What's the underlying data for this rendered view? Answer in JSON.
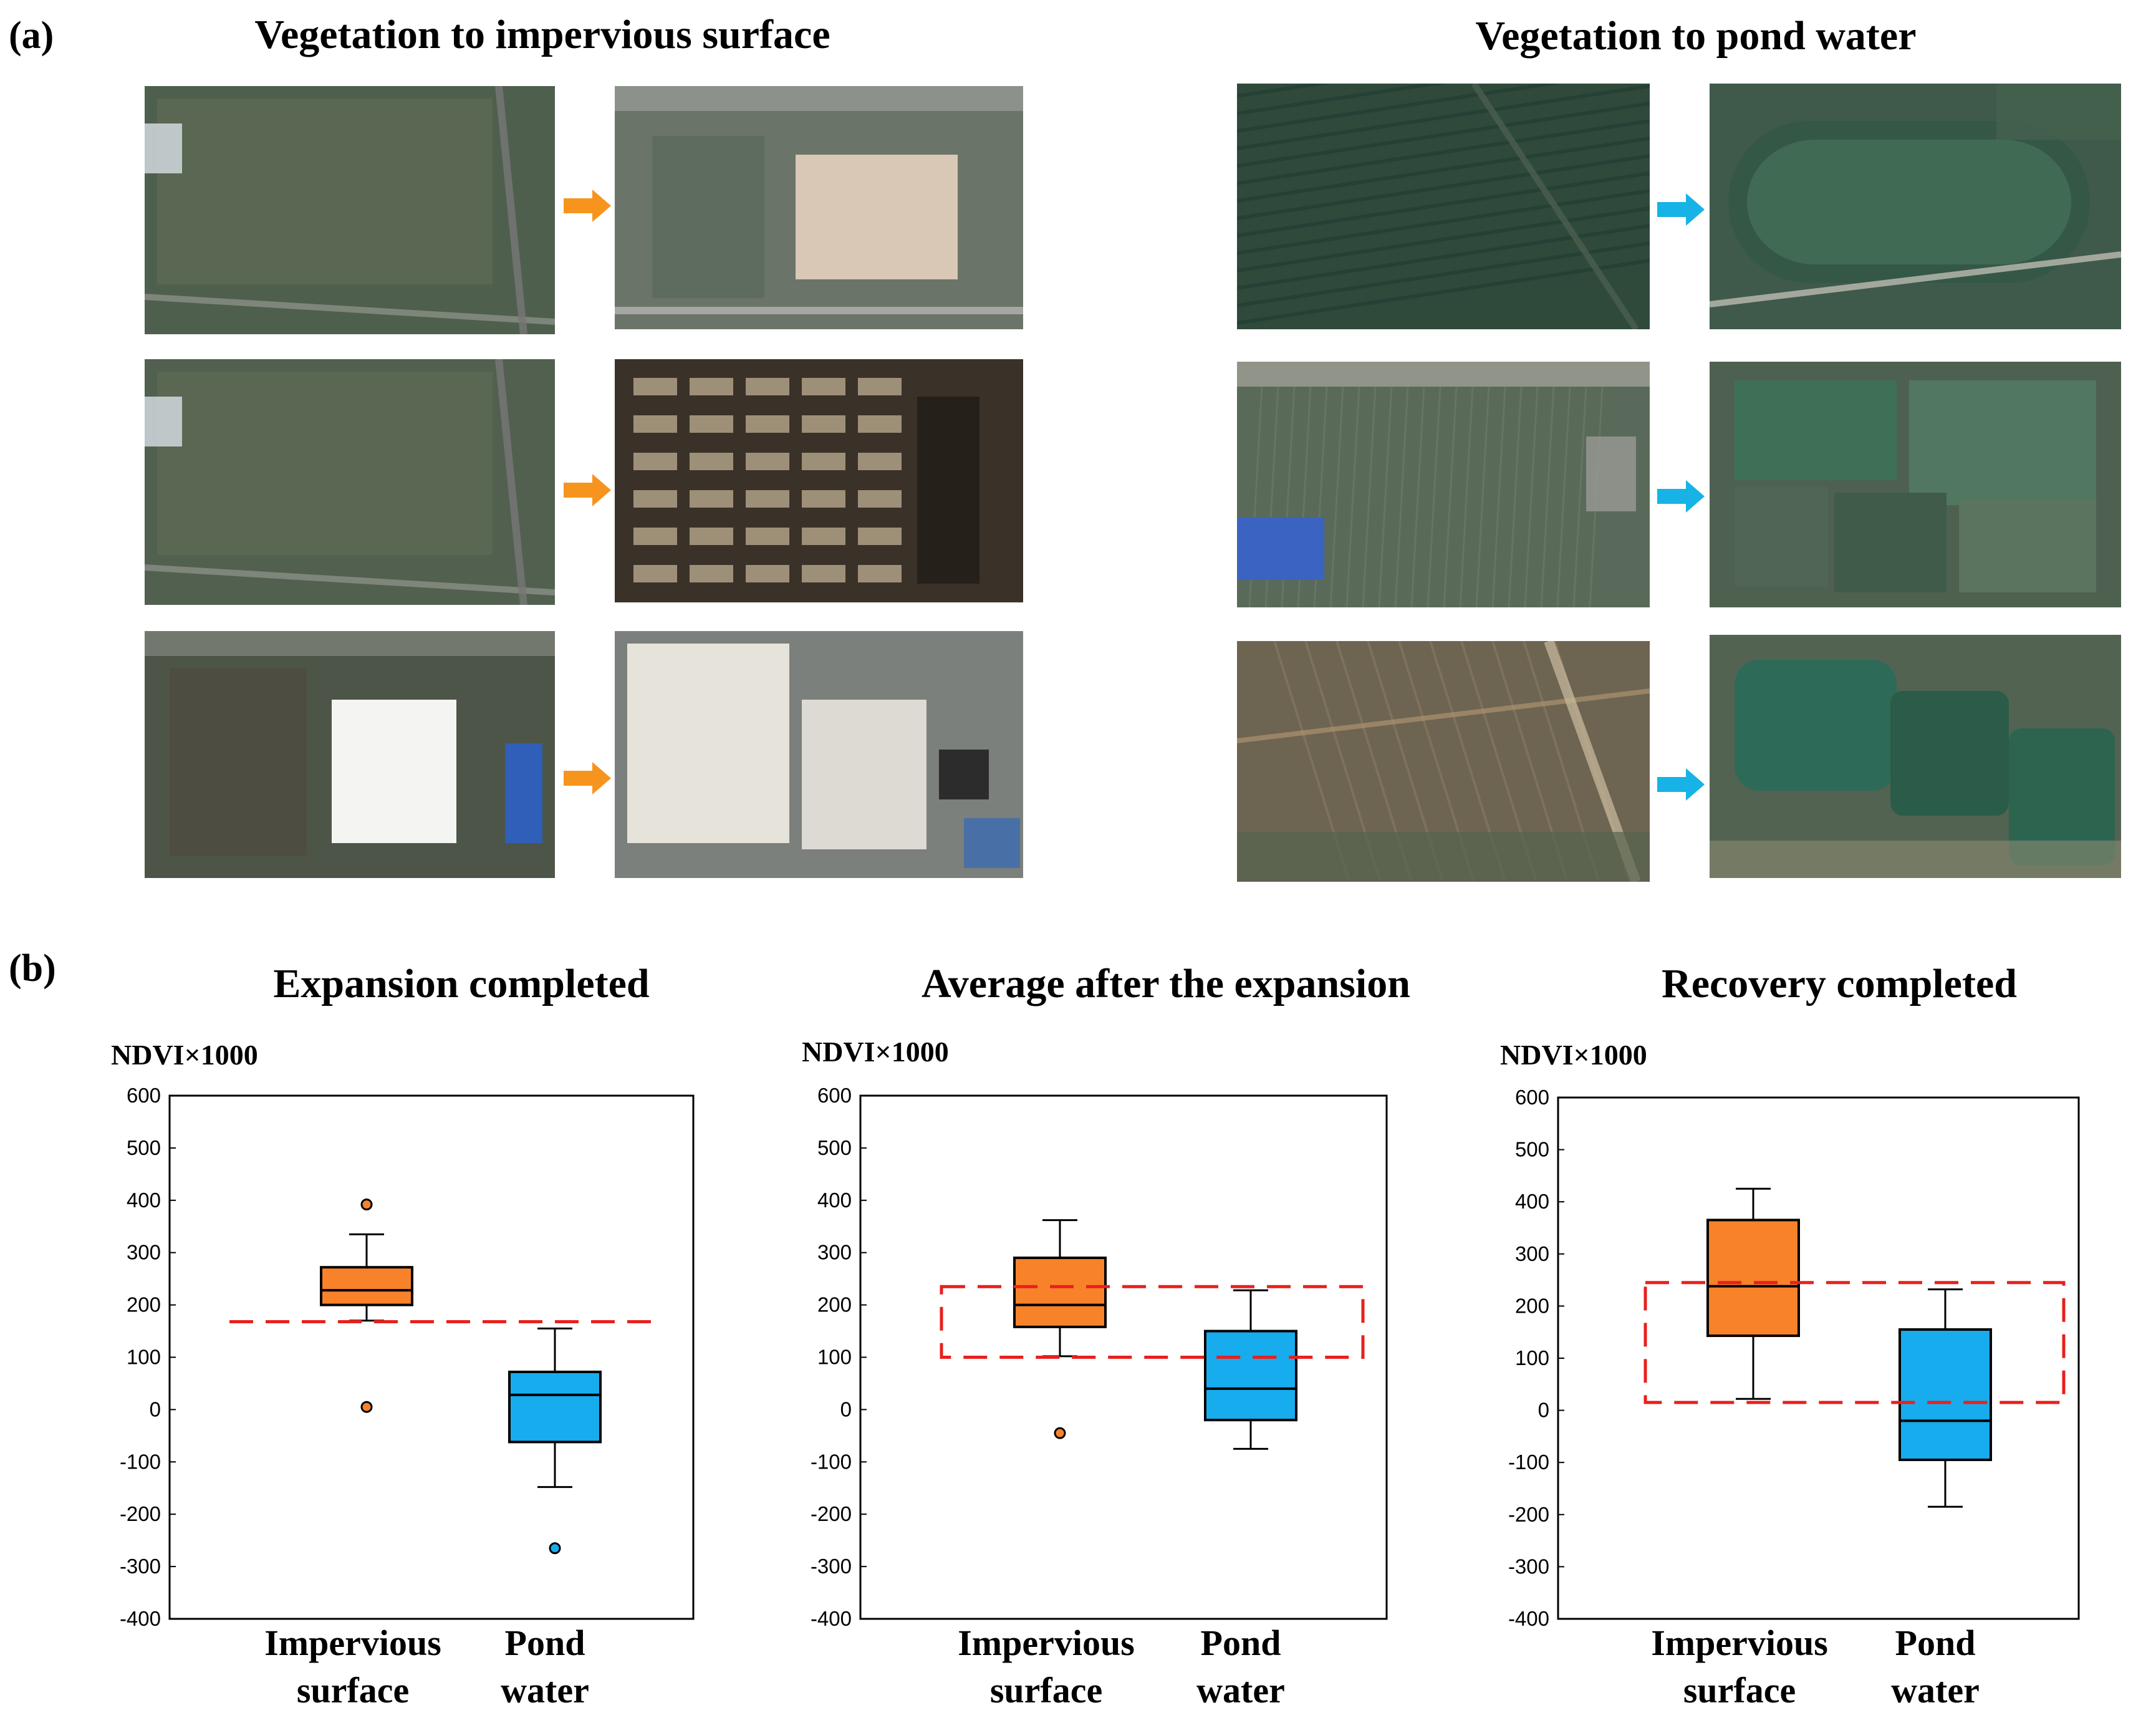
{
  "panel_a": {
    "label": "(a)",
    "left_title": "Vegetation to impervious surface",
    "right_title": "Vegetation to pond water",
    "colors": {
      "orange_arrow": "#F7941D",
      "blue_arrow": "#17B2E6"
    },
    "icons": [
      "arrow-right-icon"
    ]
  },
  "panel_b": {
    "label": "(b)"
  },
  "chart_data": [
    {
      "type": "box",
      "title": "Expansion completed",
      "ylabel": "NDVI×1000",
      "ylim": [
        -400,
        600
      ],
      "yticks": [
        600,
        500,
        400,
        300,
        200,
        100,
        0,
        -100,
        -200,
        -300,
        -400
      ],
      "categories": [
        "Impervious surface",
        "Pond water"
      ],
      "category_lines": [
        [
          "Impervious",
          "surface"
        ],
        [
          "Pond",
          "water"
        ]
      ],
      "boxes": [
        {
          "name": "Impervious surface",
          "color": "#F7822A",
          "whisker_low": 170,
          "q1": 200,
          "median": 228,
          "q3": 272,
          "whisker_high": 335,
          "outliers": [
            392,
            5
          ]
        },
        {
          "name": "Pond water",
          "color": "#16ACEE",
          "whisker_low": -148,
          "q1": -62,
          "median": 28,
          "q3": 72,
          "whisker_high": 155,
          "outliers": [
            -265
          ]
        }
      ],
      "reference": {
        "kind": "line",
        "y": 168,
        "color": "#E8201C"
      }
    },
    {
      "type": "box",
      "title": "Average after the expansion",
      "ylabel": "NDVI×1000",
      "ylim": [
        -400,
        600
      ],
      "yticks": [
        600,
        500,
        400,
        300,
        200,
        100,
        0,
        -100,
        -200,
        -300,
        -400
      ],
      "categories": [
        "Impervious surface",
        "Pond water"
      ],
      "category_lines": [
        [
          "Impervious",
          "surface"
        ],
        [
          "Pond",
          "water"
        ]
      ],
      "boxes": [
        {
          "name": "Impervious surface",
          "color": "#F7822A",
          "whisker_low": 102,
          "q1": 158,
          "median": 200,
          "q3": 290,
          "whisker_high": 362,
          "outliers": [
            -45
          ]
        },
        {
          "name": "Pond water",
          "color": "#16ACEE",
          "whisker_low": -75,
          "q1": -20,
          "median": 40,
          "q3": 150,
          "whisker_high": 228,
          "outliers": []
        }
      ],
      "reference": {
        "kind": "band",
        "y_low": 100,
        "y_high": 235,
        "color": "#E8201C"
      }
    },
    {
      "type": "box",
      "title": "Recovery completed",
      "ylabel": "NDVI×1000",
      "ylim": [
        -400,
        600
      ],
      "yticks": [
        600,
        500,
        400,
        300,
        200,
        100,
        0,
        -100,
        -200,
        -300,
        -400
      ],
      "categories": [
        "Impervious surface",
        "Pond water"
      ],
      "category_lines": [
        [
          "Impervious",
          "surface"
        ],
        [
          "Pond",
          "water"
        ]
      ],
      "boxes": [
        {
          "name": "Impervious surface",
          "color": "#F7822A",
          "whisker_low": 22,
          "q1": 143,
          "median": 238,
          "q3": 365,
          "whisker_high": 425,
          "outliers": []
        },
        {
          "name": "Pond water",
          "color": "#16ACEE",
          "whisker_low": -185,
          "q1": -95,
          "median": -20,
          "q3": 155,
          "whisker_high": 232,
          "outliers": []
        }
      ],
      "reference": {
        "kind": "band",
        "y_low": 15,
        "y_high": 245,
        "color": "#E8201C"
      }
    }
  ]
}
